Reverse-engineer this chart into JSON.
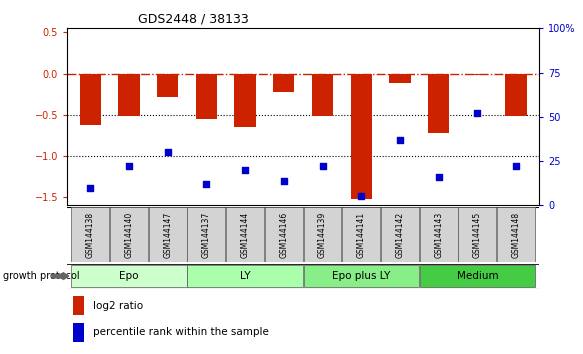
{
  "title": "GDS2448 / 38133",
  "samples": [
    "GSM144138",
    "GSM144140",
    "GSM144147",
    "GSM144137",
    "GSM144144",
    "GSM144146",
    "GSM144139",
    "GSM144141",
    "GSM144142",
    "GSM144143",
    "GSM144145",
    "GSM144148"
  ],
  "log2_ratio": [
    -0.62,
    -0.52,
    -0.28,
    -0.55,
    -0.65,
    -0.22,
    -0.52,
    -1.52,
    -0.12,
    -0.72,
    -0.02,
    -0.52
  ],
  "percentile_rank": [
    10,
    22,
    30,
    12,
    20,
    14,
    22,
    5,
    37,
    16,
    52,
    22
  ],
  "groups": [
    {
      "label": "Epo",
      "start": 0,
      "end": 3,
      "color": "#ccffcc"
    },
    {
      "label": "LY",
      "start": 3,
      "end": 6,
      "color": "#aaffaa"
    },
    {
      "label": "Epo plus LY",
      "start": 6,
      "end": 9,
      "color": "#88ee88"
    },
    {
      "label": "Medium",
      "start": 9,
      "end": 12,
      "color": "#44cc44"
    }
  ],
  "bar_color": "#cc2200",
  "dot_color": "#0000cc",
  "ylim_left": [
    -1.6,
    0.55
  ],
  "ylim_right": [
    0,
    100
  ],
  "hline_zero_color": "#cc2200",
  "hline_dotted_color": "#000000",
  "legend_bar_label": "log2 ratio",
  "legend_dot_label": "percentile rank within the sample",
  "growth_protocol_label": "growth protocol"
}
